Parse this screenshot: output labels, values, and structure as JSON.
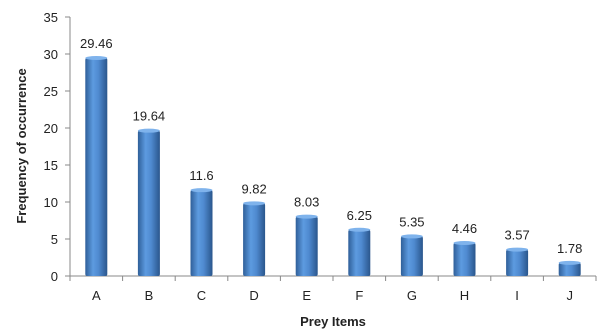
{
  "chart_data": {
    "type": "bar",
    "title": "",
    "xlabel": "Prey Items",
    "ylabel": "Frequency of occurrence",
    "categories": [
      "A",
      "B",
      "C",
      "D",
      "E",
      "F",
      "G",
      "H",
      "I",
      "J"
    ],
    "values": [
      29.46,
      19.64,
      11.6,
      9.82,
      8.03,
      6.25,
      5.35,
      4.46,
      3.57,
      1.78
    ],
    "data_labels": [
      "29.46",
      "19.64",
      "11.6",
      "9.82",
      "8.03",
      "6.25",
      "5.35",
      "4.46",
      "3.57",
      "1.78"
    ],
    "ylim": [
      0,
      35
    ],
    "yticks": [
      0,
      5,
      10,
      15,
      20,
      25,
      30,
      35
    ],
    "grid": false,
    "legend": "none",
    "bar_color": "#4a86c8"
  }
}
